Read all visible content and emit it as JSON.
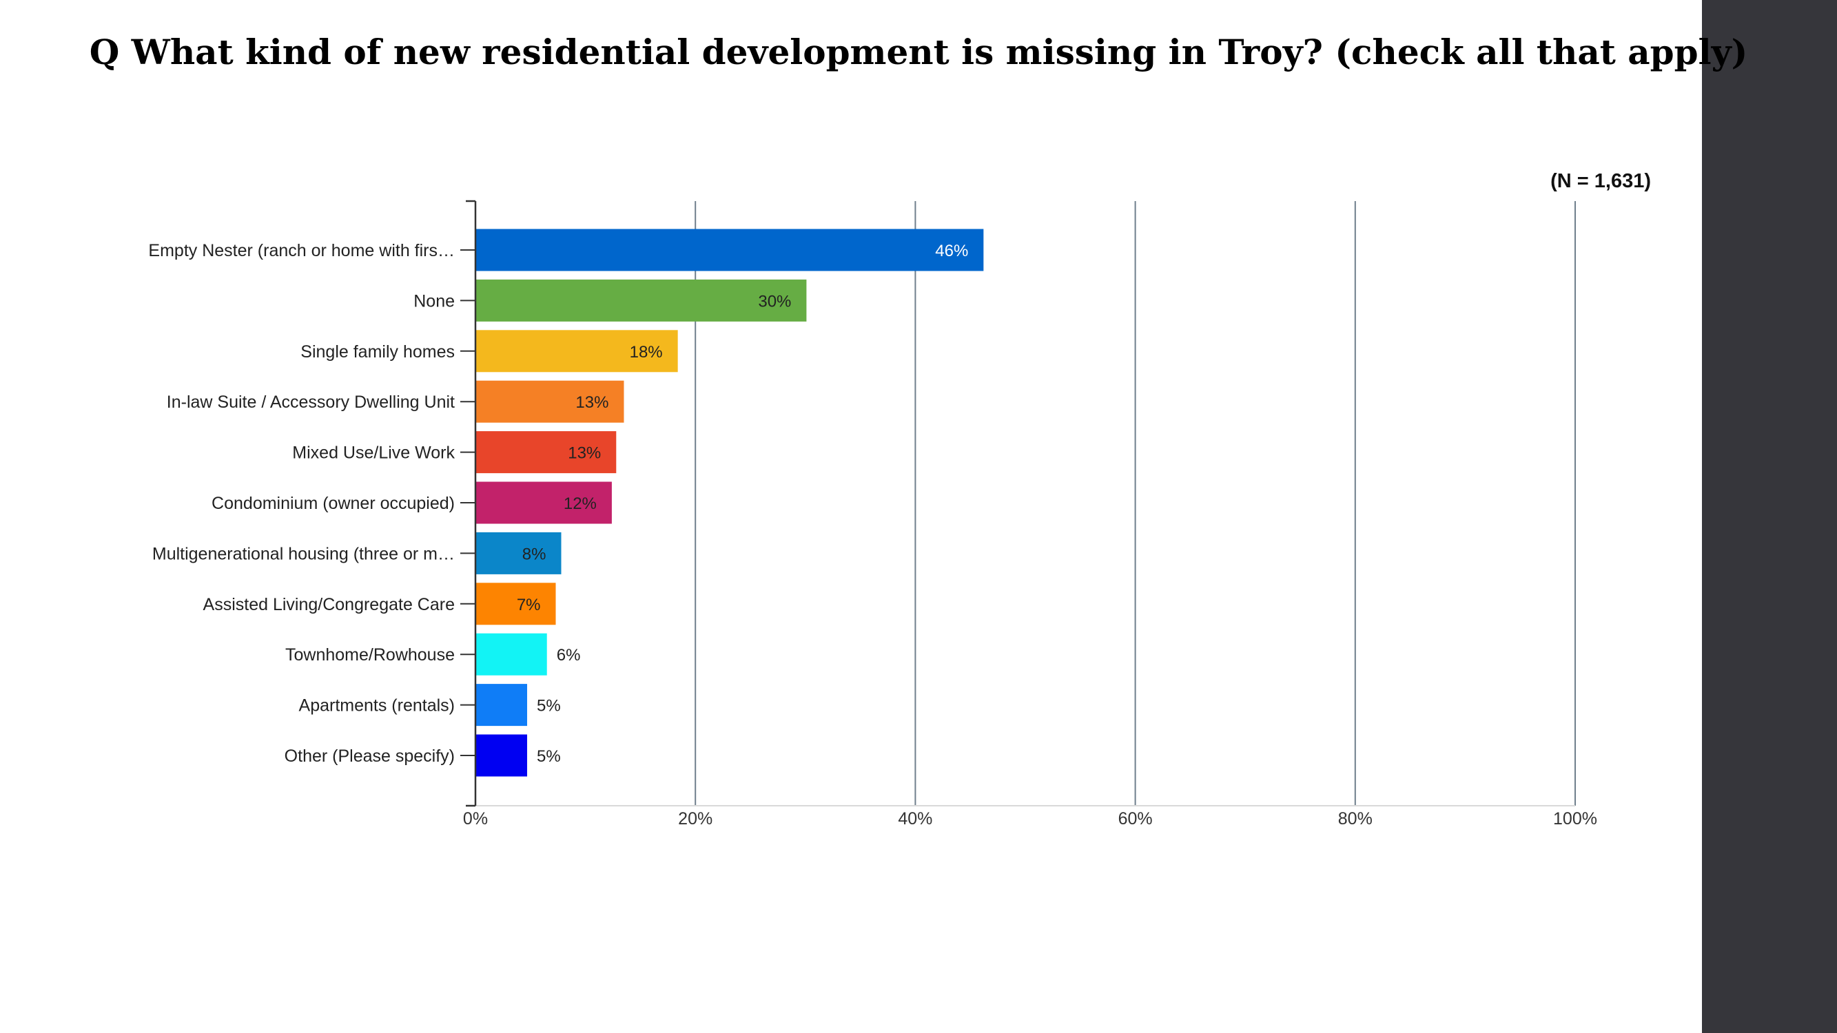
{
  "chart_data": {
    "type": "bar",
    "orientation": "horizontal",
    "title": "Q What kind of new residential development is missing in Troy? (check all that apply)",
    "sample_size_label": "(N = 1,631)",
    "categories": [
      "Empty Nester (ranch or home with firs…",
      "None",
      "Single family homes",
      "In-law Suite / Accessory Dwelling Unit",
      "Mixed Use/Live Work",
      "Condominium (owner occupied)",
      "Multigenerational housing (three or m…",
      "Assisted Living/Congregate Care",
      "Townhome/Rowhouse",
      "Apartments (rentals)",
      "Other (Please specify)"
    ],
    "values": [
      46.2,
      30.1,
      18.4,
      13.5,
      12.8,
      12.4,
      7.8,
      7.3,
      6.5,
      4.7,
      4.7
    ],
    "value_labels": [
      "46%",
      "30%",
      "18%",
      "13%",
      "13%",
      "12%",
      "8%",
      "7%",
      "6%",
      "5%",
      "5%"
    ],
    "colors": [
      "#0066cc",
      "#66ad44",
      "#f4b81d",
      "#f58025",
      "#e8452a",
      "#c2226a",
      "#0b86c9",
      "#fd8401",
      "#12f3f5",
      "#0f7df7",
      "#0000f2"
    ],
    "value_label_colors": [
      "#ffffff",
      "#222222",
      "#222222",
      "#222222",
      "#222222",
      "#222222",
      "#222222",
      "#222222",
      "#222222",
      "#222222",
      "#222222"
    ],
    "xlim": [
      0,
      100
    ],
    "x_ticks": [
      0,
      20,
      40,
      60,
      80,
      100
    ],
    "x_tick_labels": [
      "0%",
      "20%",
      "40%",
      "60%",
      "80%",
      "100%"
    ],
    "grid": true,
    "xlabel": "",
    "ylabel": ""
  },
  "colors": {
    "background": "#ffffff",
    "sidebar_strip": "#36363b",
    "gridline": "#6f7f8c",
    "axis": "#333333"
  }
}
